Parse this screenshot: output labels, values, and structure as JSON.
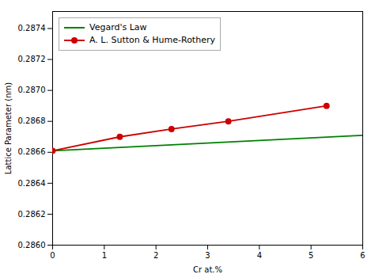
{
  "chart_data": {
    "type": "line",
    "xlabel": "Cr at.%",
    "ylabel": "Lattice Parameter (nm)",
    "xlim": [
      0,
      6
    ],
    "ylim": [
      0.286,
      0.28751
    ],
    "xticks": [
      0,
      1,
      2,
      3,
      4,
      5,
      6
    ],
    "yticks": [
      {
        "value": 0.286,
        "label": "0.2860"
      },
      0.2862,
      0.2864,
      0.2866,
      0.2868,
      {
        "value": 0.287,
        "label": "0.2870"
      },
      0.2872,
      0.2874
    ],
    "grid": false,
    "legend": "upper left",
    "series": [
      {
        "name": "Vegard's Law",
        "color": "#008000",
        "x": [
          0.0,
          6.0
        ],
        "values": [
          0.28661,
          0.28671
        ]
      },
      {
        "name": "A. L. Sutton & Hume-Rothery",
        "color": "#cc0000",
        "marker": "o",
        "x": [
          0.0,
          1.3,
          2.3,
          3.4,
          5.3
        ],
        "values": [
          0.28661,
          0.2867,
          0.28675,
          0.2868,
          0.2869
        ]
      }
    ]
  }
}
